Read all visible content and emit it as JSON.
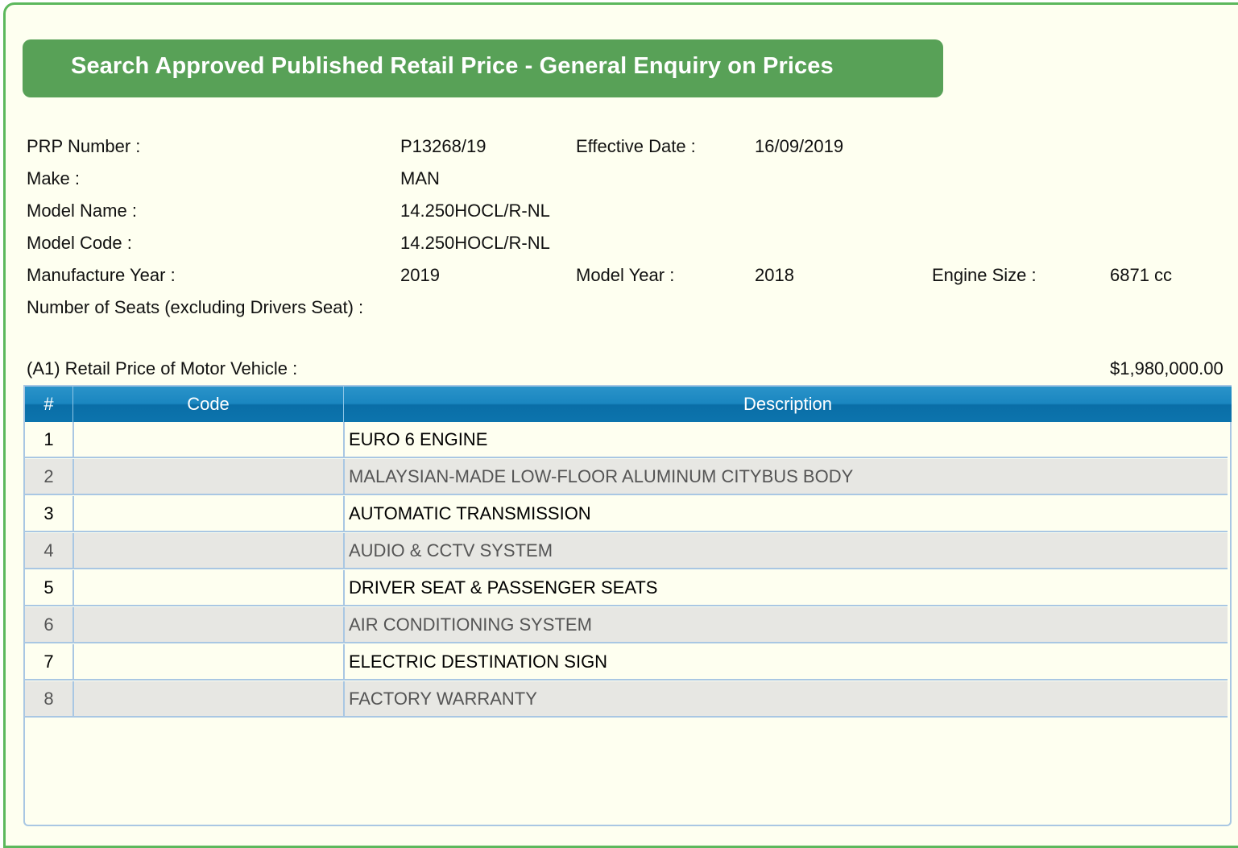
{
  "header": {
    "title": "Search Approved Published Retail Price - General Enquiry on Prices"
  },
  "details": {
    "prp_label": "PRP Number :",
    "prp_value": "P13268/19",
    "effective_date_label": "Effective Date :",
    "effective_date_value": "16/09/2019",
    "make_label": "Make :",
    "make_value": "MAN",
    "model_name_label": "Model Name :",
    "model_name_value": "14.250HOCL/R-NL",
    "model_code_label": "Model Code :",
    "model_code_value": "14.250HOCL/R-NL",
    "manufacture_year_label": "Manufacture Year :",
    "manufacture_year_value": "2019",
    "model_year_label": "Model Year :",
    "model_year_value": "2018",
    "engine_size_label": "Engine Size :",
    "engine_size_value": "6871 cc",
    "seats_label": "Number of Seats (excluding Drivers Seat) :",
    "retail_price_label": "(A1) Retail Price of Motor Vehicle :",
    "retail_price_value": "$1,980,000.00"
  },
  "table": {
    "headers": [
      "#",
      "Code",
      "Description"
    ],
    "rows": [
      {
        "num": "1",
        "code": "",
        "description": "EURO 6 ENGINE"
      },
      {
        "num": "2",
        "code": "",
        "description": "MALAYSIAN-MADE LOW-FLOOR ALUMINUM CITYBUS BODY"
      },
      {
        "num": "3",
        "code": "",
        "description": "AUTOMATIC TRANSMISSION"
      },
      {
        "num": "4",
        "code": "",
        "description": "AUDIO & CCTV SYSTEM"
      },
      {
        "num": "5",
        "code": "",
        "description": "DRIVER SEAT & PASSENGER SEATS"
      },
      {
        "num": "6",
        "code": "",
        "description": "AIR CONDITIONING SYSTEM"
      },
      {
        "num": "7",
        "code": "",
        "description": "ELECTRIC DESTINATION SIGN"
      },
      {
        "num": "8",
        "code": "",
        "description": "FACTORY WARRANTY"
      }
    ]
  },
  "colors": {
    "panel_border": "#5cb85c",
    "panel_background": "#fefff0",
    "title_bar": "#58a157",
    "table_header": "#1a86c0",
    "row_alt": "#e7e7e3"
  }
}
